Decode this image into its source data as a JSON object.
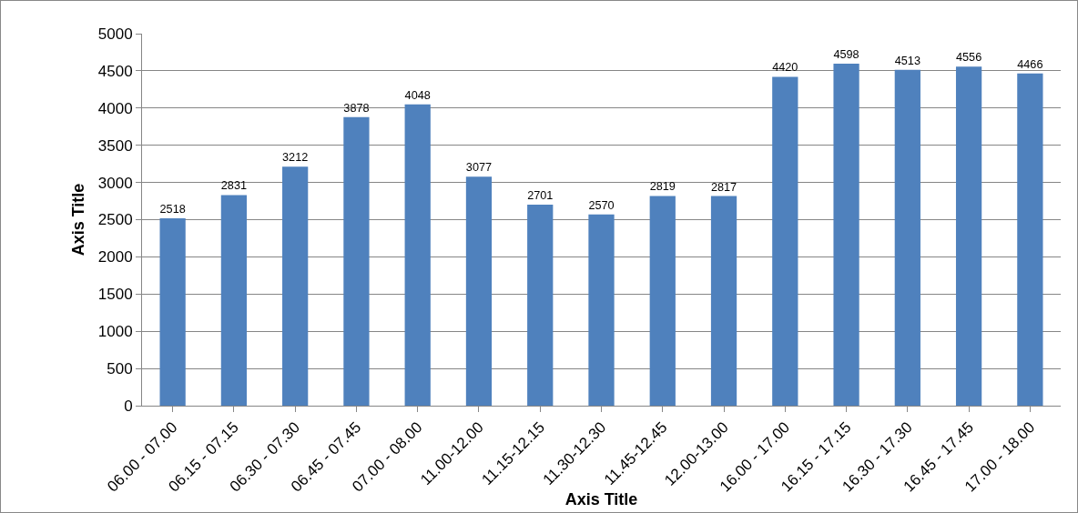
{
  "chart_data": {
    "type": "bar",
    "xlabel": "Axis Title",
    "ylabel": "Axis Title",
    "categories": [
      "06.00 - 07.00",
      "06.15 - 07.15",
      "06.30 - 07.30",
      "06.45 - 07.45",
      "07.00 - 08.00",
      "11.00-12.00",
      "11.15-12.15",
      "11.30-12.30",
      "11.45-12.45",
      "12.00-13.00",
      "16.00 - 17.00",
      "16.15 - 17.15",
      "16.30 - 17.30",
      "16.45 - 17.45",
      "17.00 - 18.00"
    ],
    "values": [
      2518,
      2831,
      3212,
      3878,
      4048,
      3077,
      2701,
      2570,
      2819,
      2817,
      4420,
      4598,
      4513,
      4556,
      4466
    ],
    "color": "#4f81bd",
    "ylim": [
      0,
      5000
    ],
    "yticks": [
      0,
      500,
      1000,
      1500,
      2000,
      2500,
      3000,
      3500,
      4000,
      4500,
      5000
    ],
    "grid": "y",
    "data_labels": true
  }
}
